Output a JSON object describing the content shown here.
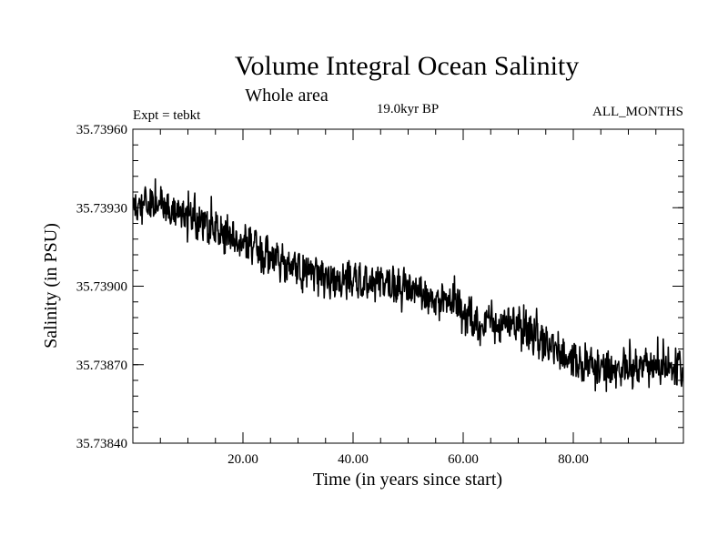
{
  "chart_data": {
    "type": "line",
    "title": "Volume Integral Ocean Salinity",
    "subtitle": "Whole area",
    "experiment_label": "Expt = tebkt",
    "period_label": "19.0kyr BP",
    "months_label": "ALL_MONTHS",
    "xlabel": "Time (in years since start)",
    "ylabel": "Salinity (in PSU)",
    "xlim": [
      0,
      100
    ],
    "ylim": [
      35.7384,
      35.7396
    ],
    "x_ticks": [
      20,
      40,
      60,
      80
    ],
    "x_tick_labels": [
      "20.00",
      "40.00",
      "60.00",
      "80.00"
    ],
    "y_ticks": [
      35.7384,
      35.7387,
      35.739,
      35.7393,
      35.7396
    ],
    "y_tick_labels": [
      "35.73840",
      "35.73870",
      "35.73900",
      "35.73930",
      "35.73960"
    ],
    "grid": false,
    "series": [
      {
        "name": "salinity",
        "color": "#000000",
        "trend_x": [
          0,
          5,
          10,
          15,
          20,
          25,
          30,
          35,
          40,
          45,
          50,
          55,
          58,
          62,
          70,
          75,
          80,
          85,
          90,
          95,
          100
        ],
        "trend_y": [
          35.7393,
          35.73931,
          35.73927,
          35.73922,
          35.73917,
          35.73911,
          35.73906,
          35.73903,
          35.73902,
          35.73902,
          35.73899,
          35.73893,
          35.73895,
          35.73886,
          35.73885,
          35.73878,
          35.73871,
          35.73869,
          35.73868,
          35.7387,
          35.73869
        ],
        "noise_amplitude": 6e-05,
        "samples_per_year": 12
      }
    ]
  }
}
